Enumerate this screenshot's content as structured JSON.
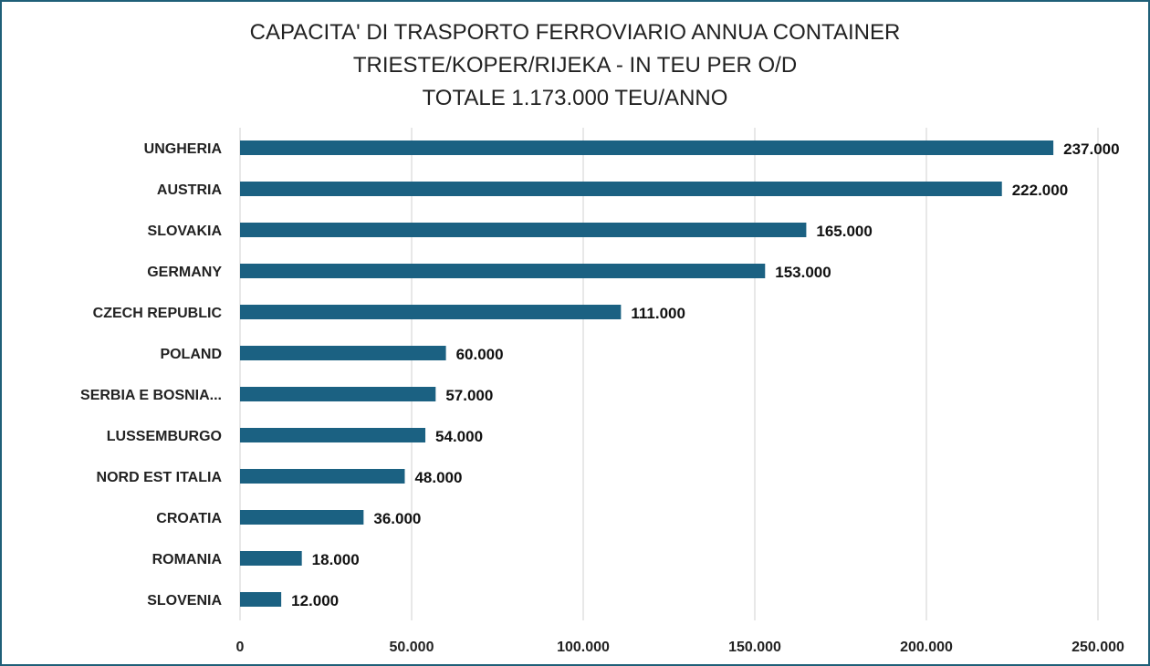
{
  "chart_data": {
    "type": "bar",
    "orientation": "horizontal",
    "title_lines": [
      "CAPACITA' DI TRASPORTO FERROVIARIO ANNUA CONTAINER",
      "TRIESTE/KOPER/RIJEKA - IN TEU PER O/D",
      "TOTALE 1.173.000 TEU/ANNO"
    ],
    "categories": [
      "UNGHERIA",
      "AUSTRIA",
      "SLOVAKIA",
      "GERMANY",
      "CZECH REPUBLIC",
      "POLAND",
      "SERBIA E BOSNIA...",
      "LUSSEMBURGO",
      "NORD EST ITALIA",
      "CROATIA",
      "ROMANIA",
      "SLOVENIA"
    ],
    "values": [
      237000,
      222000,
      165000,
      153000,
      111000,
      60000,
      57000,
      54000,
      48000,
      36000,
      18000,
      12000
    ],
    "data_labels": [
      "237.000",
      "222.000",
      "165.000",
      "153.000",
      "111.000",
      "60.000",
      "57.000",
      "54.000",
      "48.000",
      "36.000",
      "18.000",
      "12.000"
    ],
    "xlim": [
      0,
      250000
    ],
    "x_ticks": [
      0,
      50000,
      100000,
      150000,
      200000,
      250000
    ],
    "x_tick_labels": [
      "0",
      "50.000",
      "100.000",
      "150.000",
      "200.000",
      "250.000"
    ],
    "grid": "vertical",
    "bar_color": "#1b6182",
    "grid_color": "#d9d9d9"
  }
}
